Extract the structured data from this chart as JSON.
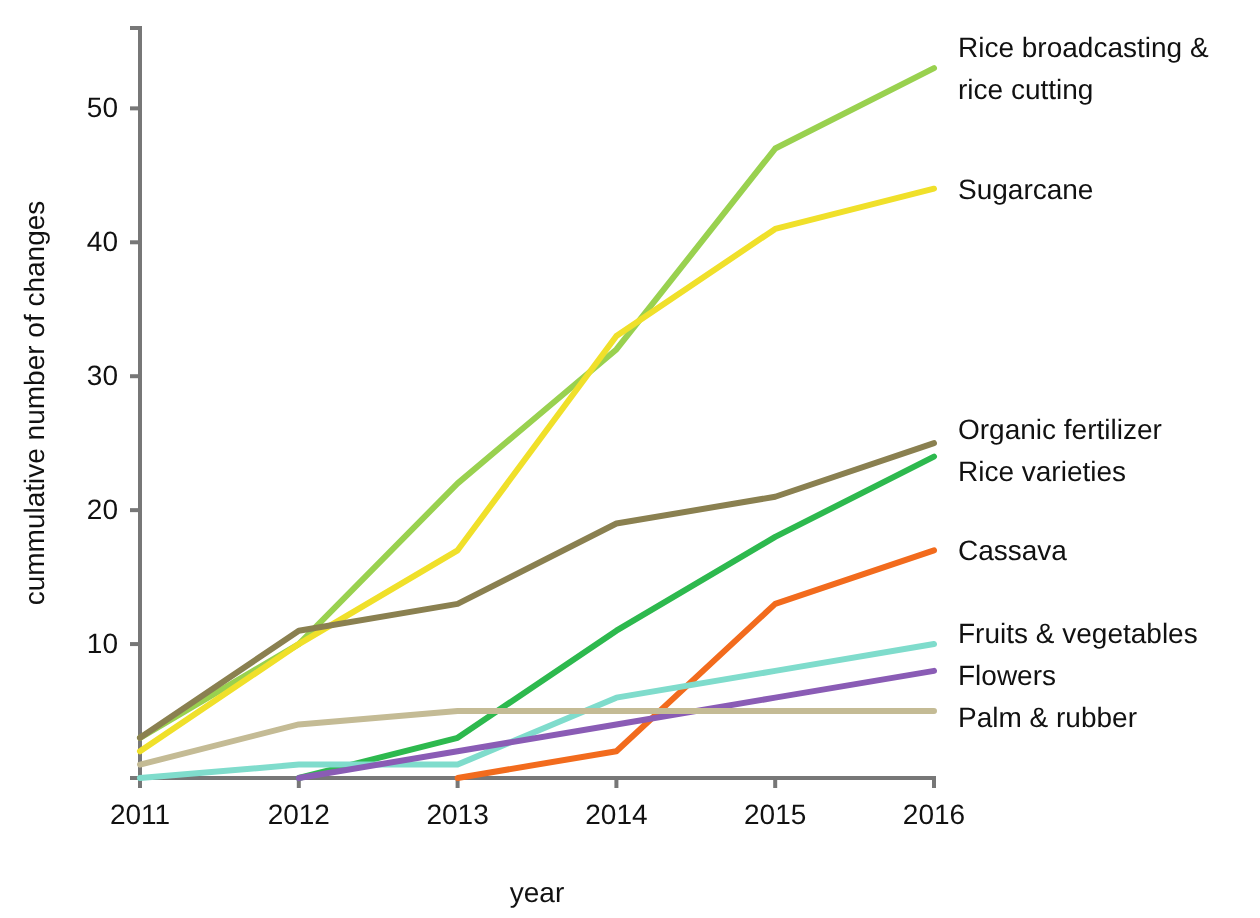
{
  "chart_data": {
    "type": "line",
    "xlabel": "year",
    "ylabel": "cummulative number of changes",
    "x": [
      2011,
      2012,
      2013,
      2014,
      2015,
      2016
    ],
    "xlim": [
      2011,
      2016
    ],
    "xticks": [
      2011,
      2012,
      2013,
      2014,
      2015,
      2016
    ],
    "ylim": [
      0,
      56
    ],
    "yticks": [
      10,
      20,
      30,
      40,
      50
    ],
    "grid": false,
    "marker": "none",
    "line_style": "solid",
    "series": [
      {
        "name": "Rice broadcasting & rice cutting",
        "color": "#99d14f",
        "values": [
          3,
          10,
          22,
          32,
          47,
          53
        ]
      },
      {
        "name": "Sugarcane",
        "color": "#f0e02a",
        "values": [
          2,
          10,
          17,
          33,
          41,
          44
        ]
      },
      {
        "name": "Organic fertilizer",
        "color": "#8a8050",
        "values": [
          3,
          11,
          13,
          19,
          21,
          25
        ]
      },
      {
        "name": "Rice varieties",
        "color": "#2db94e",
        "values": [
          null,
          0,
          3,
          11,
          18,
          24
        ]
      },
      {
        "name": "Cassava",
        "color": "#f26b1d",
        "values": [
          null,
          null,
          0,
          2,
          13,
          17
        ]
      },
      {
        "name": "Fruits & vegetables",
        "color": "#7fdccc",
        "values": [
          0,
          1,
          1,
          6,
          8,
          10
        ]
      },
      {
        "name": "Flowers",
        "color": "#8a5cb5",
        "values": [
          null,
          0,
          2,
          4,
          6,
          8
        ]
      },
      {
        "name": "Palm & rubber",
        "color": "#c4bb95",
        "values": [
          1,
          4,
          5,
          5,
          5,
          5
        ]
      }
    ]
  }
}
